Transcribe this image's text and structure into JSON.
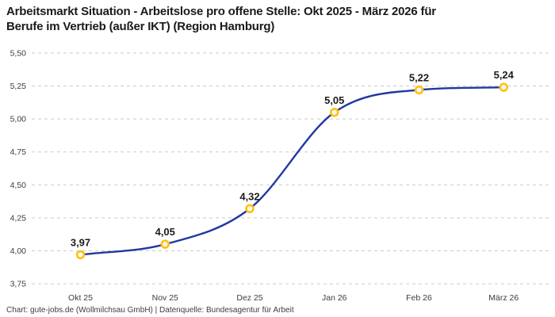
{
  "header": {
    "title_lines": [
      "Arbeitsmarkt Situation - Arbeitslose pro offene Stelle: Okt 2025 - März 2026 für",
      "Berufe im Vertrieb (außer IKT) (Region Hamburg)"
    ]
  },
  "footer": {
    "text": "Chart: gute-jobs.de (Wollmilchsau GmbH) | Datenquelle: Bundesagentur für Arbeit"
  },
  "chart_data": {
    "type": "line",
    "title": "Arbeitsmarkt Situation - Arbeitslose pro offene Stelle: Okt 2025 - März 2026 für Berufe im Vertrieb (außer IKT) (Region Hamburg)",
    "categories": [
      "Okt 25",
      "Nov 25",
      "Dez 25",
      "Jan 26",
      "Feb 26",
      "März 26"
    ],
    "values": [
      3.97,
      4.05,
      4.32,
      5.05,
      5.22,
      5.24
    ],
    "value_labels": [
      "3,97",
      "4,05",
      "4,32",
      "5,05",
      "5,22",
      "5,24"
    ],
    "y_ticks": [
      {
        "value": 5.5,
        "label": "5,50"
      },
      {
        "value": 5.25,
        "label": "5,25"
      },
      {
        "value": 5.0,
        "label": "5,00"
      },
      {
        "value": 4.75,
        "label": "4,75"
      },
      {
        "value": 4.5,
        "label": "4,50"
      },
      {
        "value": 4.25,
        "label": "4,25"
      },
      {
        "value": 4.0,
        "label": "4,00"
      },
      {
        "value": 3.75,
        "label": "3,75"
      }
    ],
    "ylim": [
      3.75,
      5.5
    ],
    "xlabel": "",
    "ylabel": "",
    "grid": "horizontal-dashed",
    "legend": "none",
    "curve": "smooth-monotone",
    "colors": {
      "line": "#2038a0",
      "marker_ring": "#ffc115",
      "marker_fill": "#ffffff",
      "grid_line": "#c9c9c9",
      "tick_label": "#3d3d3d",
      "point_label": "#1c1c1c"
    }
  }
}
